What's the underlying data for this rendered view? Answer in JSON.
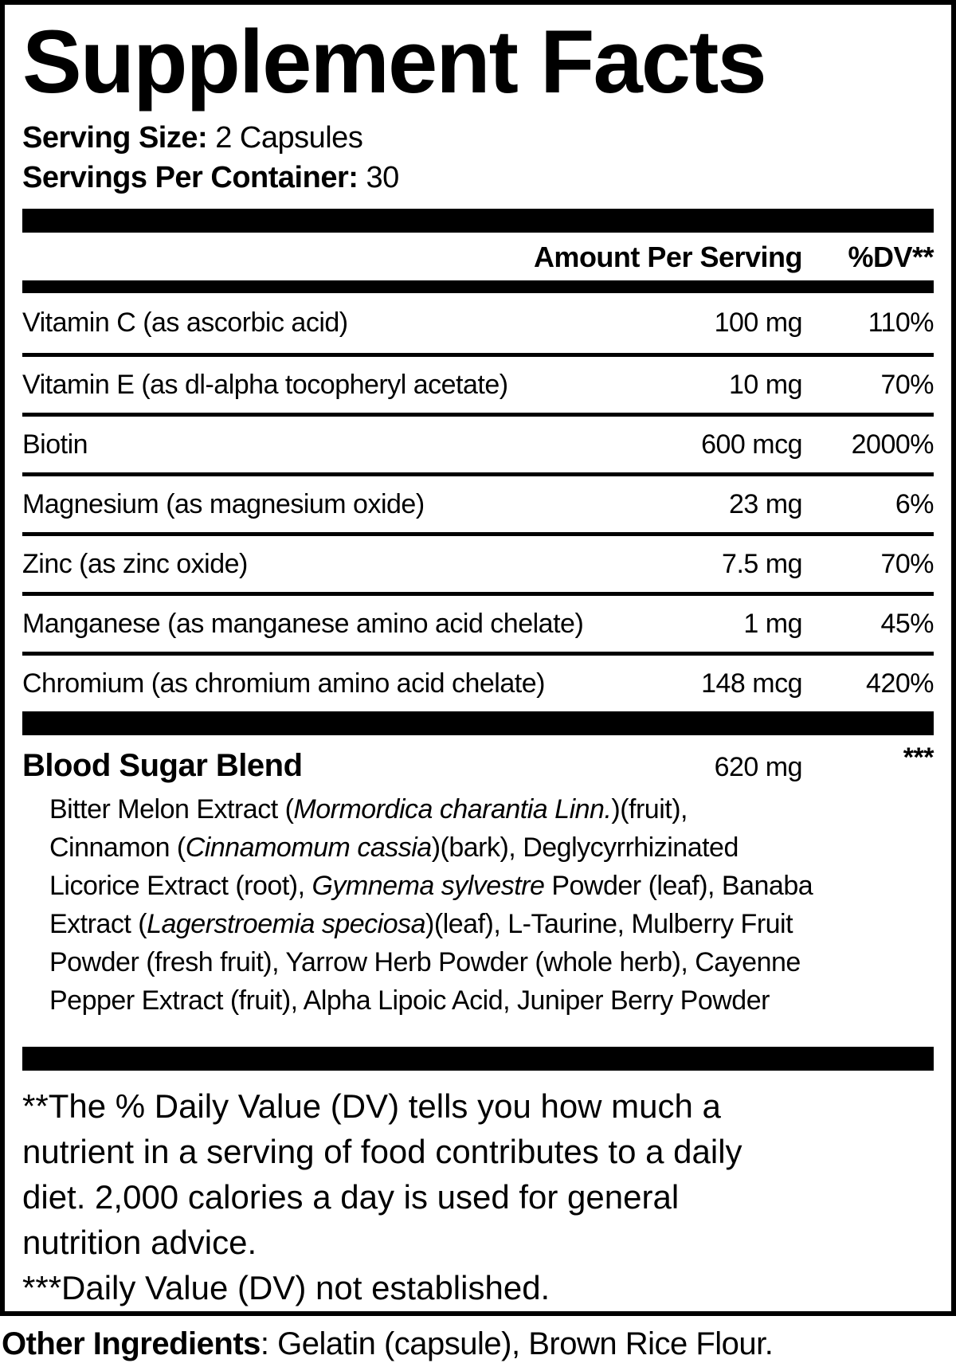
{
  "colors": {
    "ink": "#000000",
    "paper": "#ffffff"
  },
  "title": "Supplement Facts",
  "serving": {
    "size_label": "Serving Size:",
    "size_value": "2 Capsules",
    "count_label": "Servings Per Container:",
    "count_value": "30"
  },
  "table": {
    "amount_header": "Amount Per Serving",
    "dv_header": "%DV**",
    "rows": [
      {
        "name": "Vitamin C (as ascorbic acid)",
        "amount": "100 mg",
        "dv": "110%"
      },
      {
        "name": "Vitamin E (as dl-alpha tocopheryl acetate)",
        "amount": "10 mg",
        "dv": "70%"
      },
      {
        "name": "Biotin",
        "amount": "600 mcg",
        "dv": "2000%"
      },
      {
        "name": "Magnesium (as magnesium oxide)",
        "amount": "23 mg",
        "dv": "6%"
      },
      {
        "name": "Zinc (as zinc oxide)",
        "amount": "7.5 mg",
        "dv": "70%"
      },
      {
        "name": "Manganese (as manganese amino acid chelate)",
        "amount": "1 mg",
        "dv": "45%"
      },
      {
        "name": "Chromium (as chromium amino acid chelate)",
        "amount": "148 mcg",
        "dv": "420%"
      }
    ]
  },
  "blend": {
    "name": "Blood Sugar Blend",
    "amount": "620 mg",
    "dv": "***",
    "ingredients": [
      {
        "text": "Bitter Melon Extract (",
        "italic": false
      },
      {
        "text": "Mormordica charantia Linn.",
        "italic": true
      },
      {
        "text": ")(fruit),\nCinnamon (",
        "italic": false
      },
      {
        "text": "Cinnamomum cassia",
        "italic": true
      },
      {
        "text": ")(bark), Deglycyrrhizinated\nLicorice Extract (root), ",
        "italic": false
      },
      {
        "text": "Gymnema sylvestre",
        "italic": true
      },
      {
        "text": " Powder (leaf), Banaba\nExtract (",
        "italic": false
      },
      {
        "text": "Lagerstroemia speciosa",
        "italic": true
      },
      {
        "text": ")(leaf), L-Taurine, Mulberry Fruit\nPowder (fresh fruit), Yarrow Herb Powder (whole herb), Cayenne\nPepper Extract (fruit), Alpha Lipoic Acid, Juniper Berry Powder",
        "italic": false
      }
    ]
  },
  "footnotes": {
    "daily_value": "**The % Daily Value (DV) tells you how much a\nnutrient in a serving of food contributes to a daily\ndiet. 2,000 calories a day is used for general\nnutrition advice.",
    "not_established": "***Daily Value (DV) not established."
  },
  "other_ingredients": {
    "label": "Other Ingredients",
    "value": ": Gelatin (capsule), Brown Rice Flour."
  }
}
